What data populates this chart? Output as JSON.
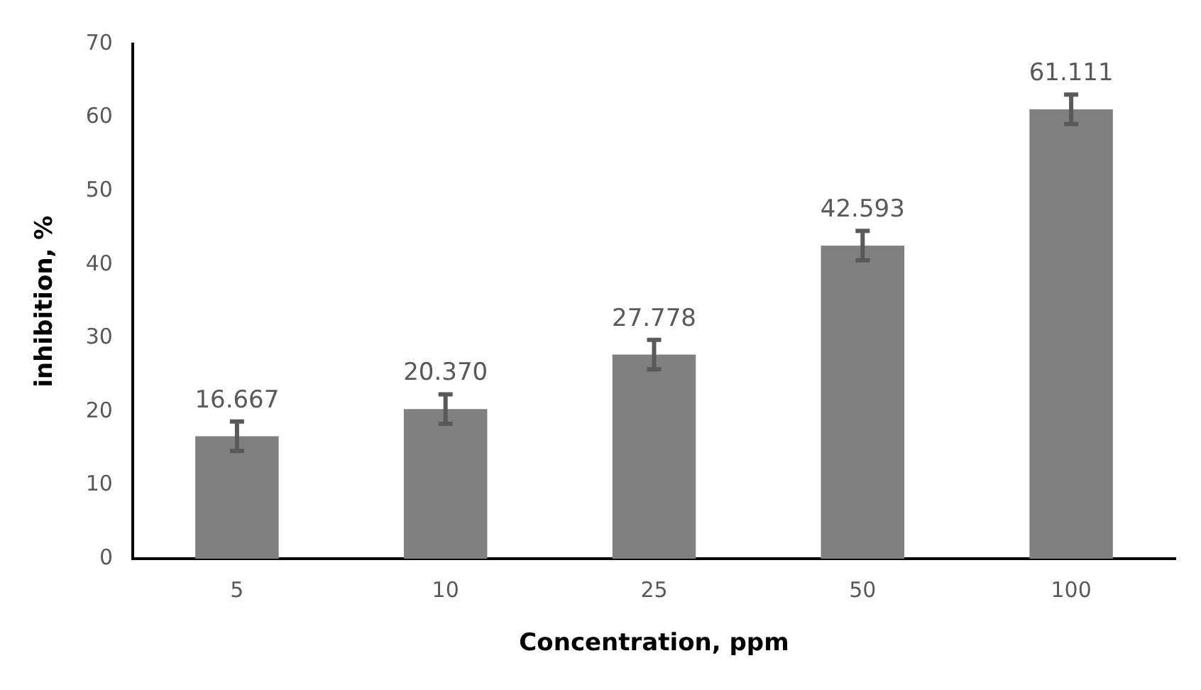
{
  "chart_data": {
    "type": "bar",
    "xlabel": "Concentration, ppm",
    "ylabel": "inhibition, %",
    "categories": [
      "5",
      "10",
      "25",
      "50",
      "100"
    ],
    "values": [
      16.667,
      20.37,
      27.778,
      42.593,
      61.111
    ],
    "value_labels": [
      "16.667",
      "20.370",
      "27.778",
      "42.593",
      "61.111"
    ],
    "errors": [
      2,
      2,
      2,
      2,
      2
    ],
    "color": "#808080",
    "ylim": [
      0,
      70
    ],
    "yticks": [
      0,
      10,
      20,
      30,
      40,
      50,
      60,
      70
    ],
    "grid": false,
    "legend": false
  }
}
